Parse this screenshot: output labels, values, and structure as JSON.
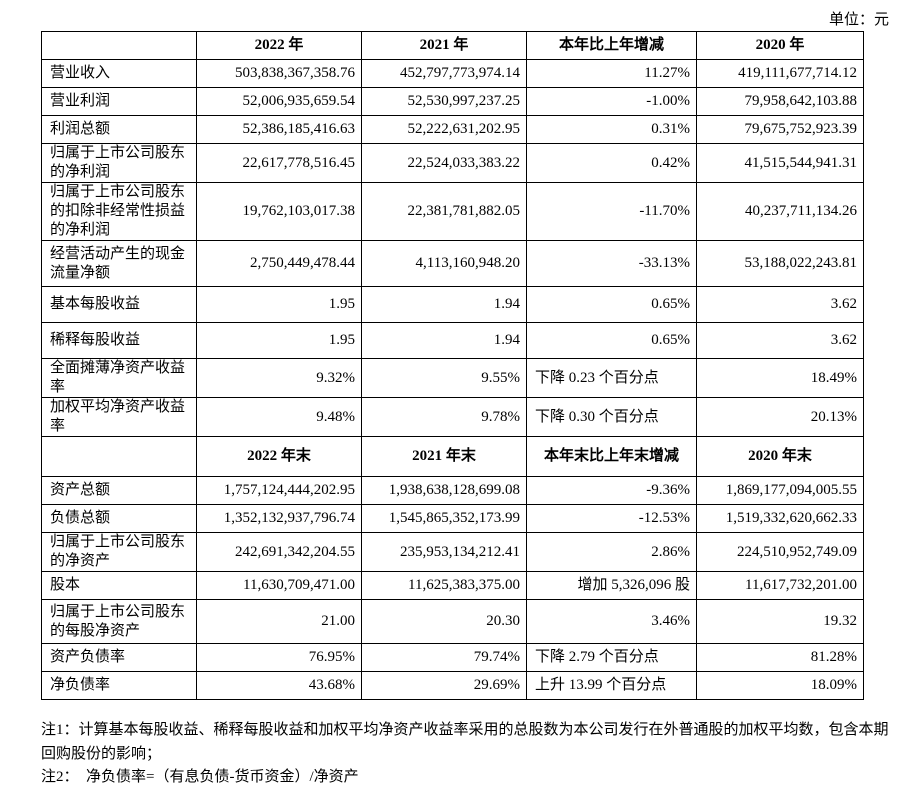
{
  "unit_label": "单位：元",
  "header1": {
    "c0": "",
    "c1": "2022 年",
    "c2": "2021 年",
    "c3": "本年比上年增减",
    "c4": "2020 年"
  },
  "rows1": [
    {
      "label": "营业收入",
      "v1": "503,838,367,358.76",
      "v2": "452,797,773,974.14",
      "v3": "11.27%",
      "v4": "419,111,677,714.12"
    },
    {
      "label": "营业利润",
      "v1": "52,006,935,659.54",
      "v2": "52,530,997,237.25",
      "v3": "-1.00%",
      "v4": "79,958,642,103.88"
    },
    {
      "label": "利润总额",
      "v1": "52,386,185,416.63",
      "v2": "52,222,631,202.95",
      "v3": "0.31%",
      "v4": "79,675,752,923.39"
    },
    {
      "label": "归属于上市公司股东的净利润",
      "v1": "22,617,778,516.45",
      "v2": "22,524,033,383.22",
      "v3": "0.42%",
      "v4": "41,515,544,941.31"
    },
    {
      "label": "归属于上市公司股东的扣除非经常性损益的净利润",
      "v1": "19,762,103,017.38",
      "v2": "22,381,781,882.05",
      "v3": "-11.70%",
      "v4": "40,237,711,134.26"
    },
    {
      "label": "经营活动产生的现金流量净额",
      "v1": "2,750,449,478.44",
      "v2": "4,113,160,948.20",
      "v3": "-33.13%",
      "v4": "53,188,022,243.81"
    },
    {
      "label": "基本每股收益",
      "v1": "1.95",
      "v2": "1.94",
      "v3": "0.65%",
      "v4": "3.62"
    },
    {
      "label": "稀释每股收益",
      "v1": "1.95",
      "v2": "1.94",
      "v3": "0.65%",
      "v4": "3.62"
    },
    {
      "label": "全面摊薄净资产收益率",
      "v1": "9.32%",
      "v2": "9.55%",
      "v3": "下降 0.23 个百分点",
      "v4": "18.49%"
    },
    {
      "label": "加权平均净资产收益率",
      "v1": "9.48%",
      "v2": "9.78%",
      "v3": "下降 0.30 个百分点",
      "v4": "20.13%"
    }
  ],
  "header2": {
    "c0": "",
    "c1": "2022 年末",
    "c2": "2021 年末",
    "c3": "本年末比上年末增减",
    "c4": "2020 年末"
  },
  "rows2": [
    {
      "label": "资产总额",
      "v1": "1,757,124,444,202.95",
      "v2": "1,938,638,128,699.08",
      "v3": "-9.36%",
      "v4": "1,869,177,094,005.55"
    },
    {
      "label": "负债总额",
      "v1": "1,352,132,937,796.74",
      "v2": "1,545,865,352,173.99",
      "v3": "-12.53%",
      "v4": "1,519,332,620,662.33"
    },
    {
      "label": "归属于上市公司股东的净资产",
      "v1": "242,691,342,204.55",
      "v2": "235,953,134,212.41",
      "v3": "2.86%",
      "v4": "224,510,952,749.09"
    },
    {
      "label": "股本",
      "v1": "11,630,709,471.00",
      "v2": "11,625,383,375.00",
      "v3": "增加 5,326,096 股",
      "v4": "11,617,732,201.00"
    },
    {
      "label": "归属于上市公司股东的每股净资产",
      "v1": "21.00",
      "v2": "20.30",
      "v3": "3.46%",
      "v4": "19.32"
    },
    {
      "label": "资产负债率",
      "v1": "76.95%",
      "v2": "79.74%",
      "v3": "下降 2.79 个百分点",
      "v4": "81.28%"
    },
    {
      "label": "净负债率",
      "v1": "43.68%",
      "v2": "29.69%",
      "v3": "上升 13.99 个百分点",
      "v4": "18.09%"
    }
  ],
  "notes": {
    "note1": "注1：计算基本每股收益、稀释每股收益和加权平均净资产收益率采用的总股数为本公司发行在外普通股的加权平均数，包含本期回购股份的影响；",
    "note2": "注2：　净负债率=（有息负债-货币资金）/净资产"
  }
}
